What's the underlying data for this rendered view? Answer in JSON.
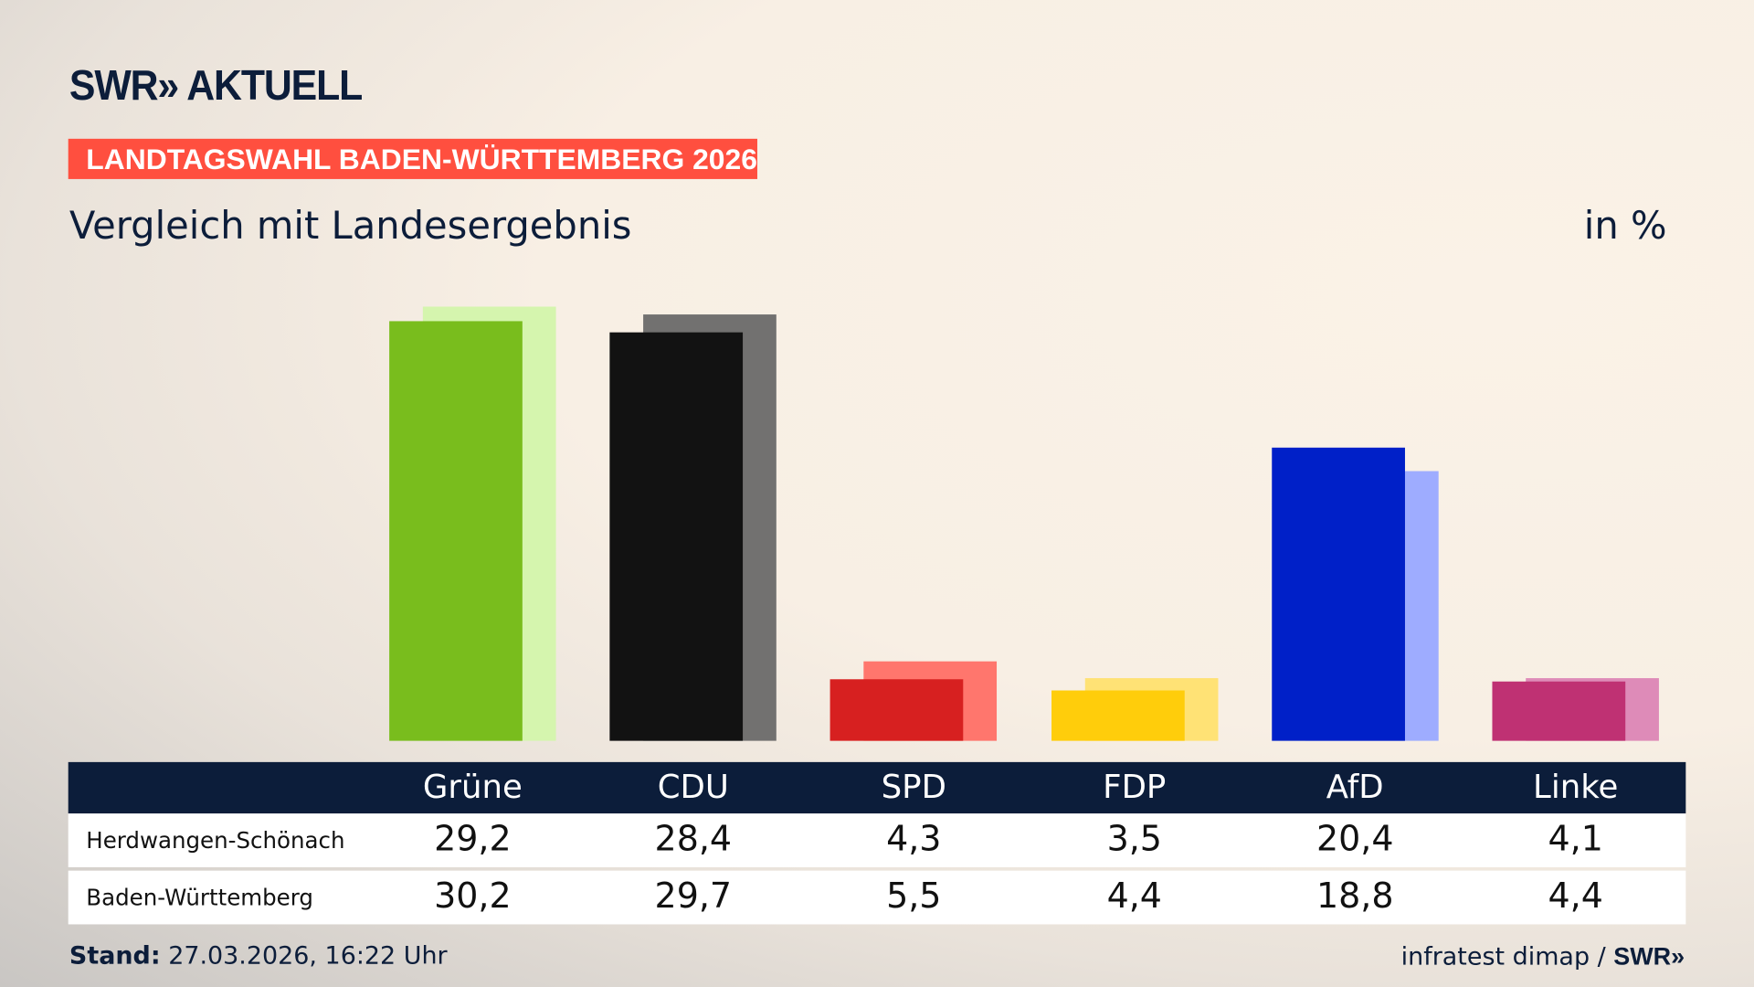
{
  "brand": {
    "logo": "SWR» AKTUELL"
  },
  "banner": "LANDTAGSWAHL BADEN-WÜRTTEMBERG 2026",
  "subtitle": "Vergleich mit Landesergebnis",
  "unit": "in %",
  "footer": {
    "stand_label": "Stand:",
    "stand_value": "27.03.2026, 16:22 Uhr",
    "source": "infratest dimap /",
    "source_logo": "SWR»"
  },
  "chart_data": {
    "type": "bar",
    "categories": [
      "Grüne",
      "CDU",
      "SPD",
      "FDP",
      "AfD",
      "Linke"
    ],
    "series": [
      {
        "name": "Herdwangen-Schönach",
        "values": [
          29.2,
          28.4,
          4.3,
          3.5,
          20.4,
          4.1
        ],
        "labels": [
          "29,2",
          "28,4",
          "4,3",
          "3,5",
          "20,4",
          "4,1"
        ]
      },
      {
        "name": "Baden-Württemberg",
        "values": [
          30.2,
          29.7,
          5.5,
          4.4,
          18.8,
          4.4
        ],
        "labels": [
          "30,2",
          "29,7",
          "5,5",
          "4,4",
          "18,8",
          "4,4"
        ]
      }
    ],
    "colors": {
      "front": [
        "#79bd1d",
        "#121212",
        "#d72020",
        "#ffcd0b",
        "#0020c8",
        "#bf3173"
      ],
      "back": [
        "#d5f5ae",
        "#727170",
        "#ff766d",
        "#ffe275",
        "#9eacff",
        "#de8bb8"
      ]
    },
    "ylim": [
      0,
      31
    ],
    "grid": false
  }
}
